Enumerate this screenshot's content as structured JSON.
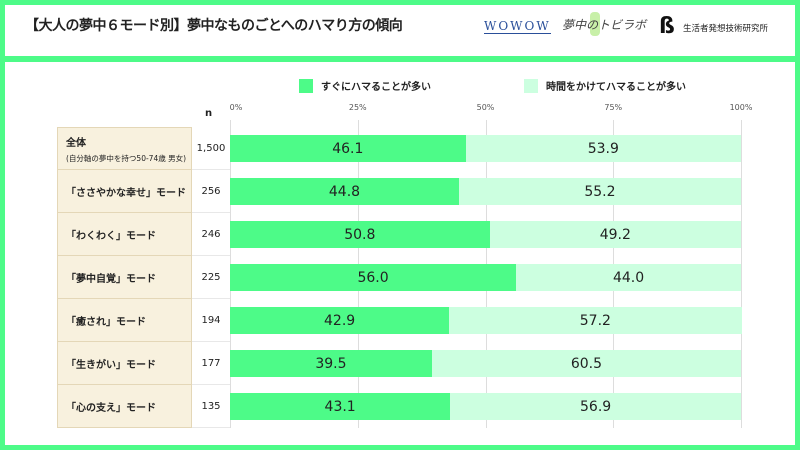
{
  "header": {
    "title": "【大人の夢中６モード別】夢中なものごとへのハマり方の傾向",
    "logos": [
      "WOWOW",
      "夢中のトビラボ",
      "生活者発想技術研究所"
    ]
  },
  "colors": {
    "quick": "#4dfb88",
    "slow": "#ccffe0",
    "label_bg": "#f8f1de"
  },
  "chart_data": {
    "type": "bar",
    "stacked": true,
    "orientation": "horizontal",
    "n_label": "n",
    "xlim": [
      0,
      100
    ],
    "ticks": [
      "0%",
      "25%",
      "50%",
      "75%",
      "100%"
    ],
    "legend_placement": "top",
    "categories": [
      {
        "label": "全体",
        "sub": "(自分軸の夢中を持つ50-74歳 男女)",
        "n": "1,500"
      },
      {
        "label": "「ささやかな幸せ」モード",
        "n": "256"
      },
      {
        "label": "「わくわく」モード",
        "n": "246"
      },
      {
        "label": "「夢中自覚」モード",
        "n": "225"
      },
      {
        "label": "「癒され」モード",
        "n": "194"
      },
      {
        "label": "「生きがい」モード",
        "n": "177"
      },
      {
        "label": "「心の支え」モード",
        "n": "135"
      }
    ],
    "series": [
      {
        "name": "すぐにハマることが多い",
        "values": [
          46.1,
          44.8,
          50.8,
          56.0,
          42.9,
          39.5,
          43.1
        ]
      },
      {
        "name": "時間をかけてハマることが多い",
        "values": [
          53.9,
          55.2,
          49.2,
          44.0,
          57.2,
          60.5,
          56.9
        ]
      }
    ]
  }
}
